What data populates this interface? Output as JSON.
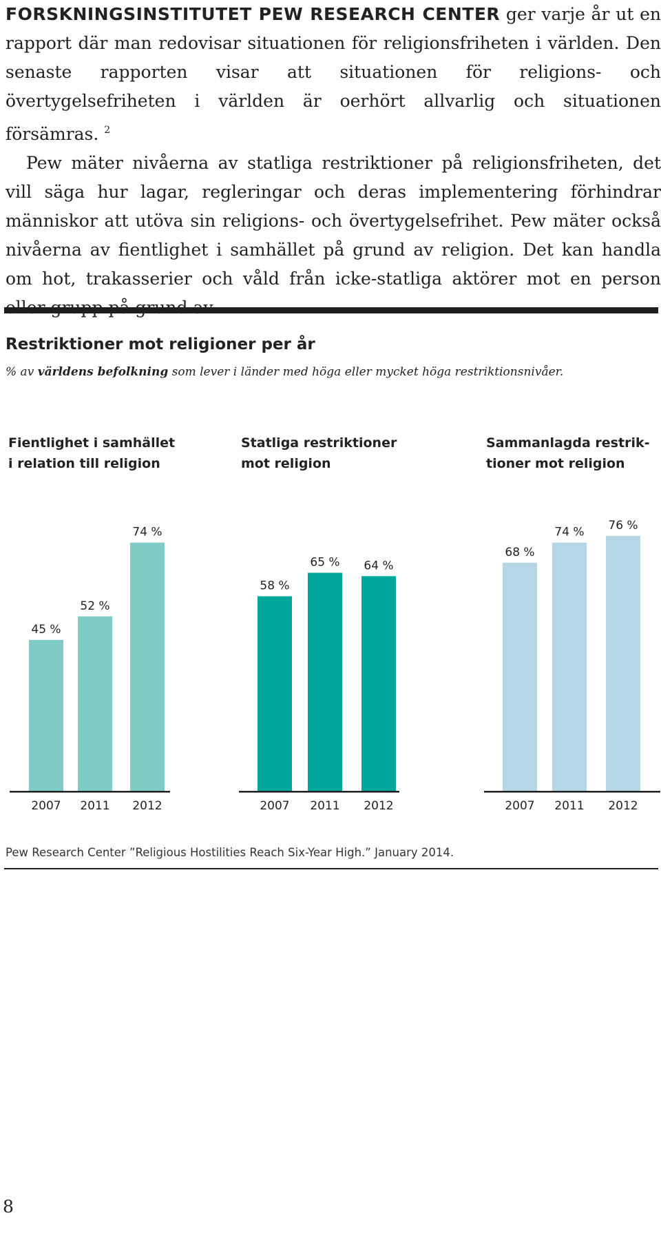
{
  "body": {
    "lead_caps": "FORSKNINGSINSTITUTET PEW RESEARCH CENTER",
    "paragraph1": "ger varje år ut en rapport där man redovisar situationen för religionsfriheten i världen. Den senaste rapporten visar att situationen för religions- och övertygelsefriheten i världen är oerhört allvarlig och situationen försämras.",
    "footnote_ref": "2",
    "paragraph2": "Pew mäter nivåerna av statliga restriktioner på religionsfriheten, det vill säga hur lagar, regleringar och deras implementering förhindrar människor att utöva sin religions- och övertygelsefrihet. Pew mäter också nivåerna av fientlighet i samhället på grund av religion. Det kan handla om hot, trakasserier och våld från icke-statliga aktörer mot en person eller grupp på grund av"
  },
  "figure": {
    "title": "Restriktioner mot religioner per år",
    "subtitle_prefix": "% av",
    "subtitle_bold": "världens befolkning",
    "subtitle_suffix": "som lever i länder med höga eller mycket höga restriktionsnivåer.",
    "source": "Pew Research Center ”Religious Hostilities Reach Six-Year High.” January 2014."
  },
  "panels": [
    {
      "title_line1": "Fientlighet i samhället",
      "title_line2": "i relation till religion"
    },
    {
      "title_line1": "Statliga restriktioner",
      "title_line2": "mot religion"
    },
    {
      "title_line1": "Sammanlagda restrik-",
      "title_line2": "tioner mot religion"
    }
  ],
  "chart_data": {
    "type": "bar",
    "title": "Restriktioner mot religioner per år",
    "unit": "%",
    "categories": [
      "2007",
      "2011",
      "2012"
    ],
    "series": [
      {
        "name": "Fientlighet i samhället i relation till religion",
        "values": [
          45,
          52,
          74
        ],
        "color": "#7fcbc6"
      },
      {
        "name": "Statliga restriktioner mot religion",
        "values": [
          58,
          65,
          64
        ],
        "color": "#00a79d"
      },
      {
        "name": "Sammanlagda restriktioner mot religion",
        "values": [
          68,
          74,
          76
        ],
        "color": "#b5d6e5"
      }
    ],
    "ylim": [
      0,
      80
    ],
    "value_suffix": "%"
  },
  "page": {
    "number": "8"
  },
  "colors": {
    "text": "#1e1e1e",
    "rule": "#1e1e1e"
  }
}
